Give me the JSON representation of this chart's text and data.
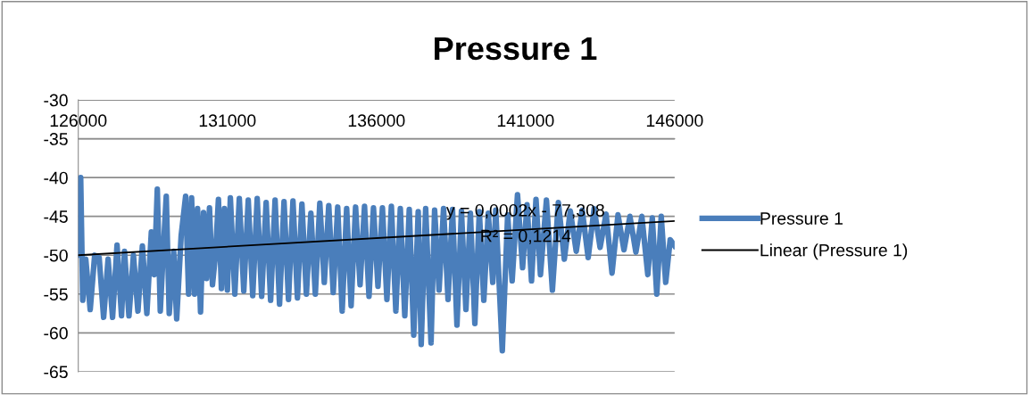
{
  "chart_data": {
    "type": "line",
    "title": "Pressure 1",
    "xlim": [
      126000,
      146000
    ],
    "xticks": [
      126000,
      131000,
      136000,
      141000,
      146000
    ],
    "ylim": [
      -65,
      -30
    ],
    "yticks": [
      -65,
      -60,
      -55,
      -50,
      -45,
      -40,
      -35,
      -30
    ],
    "grid": "y",
    "legend": "right",
    "marker": "none",
    "line_style": "solid",
    "series": [
      {
        "name": "Pressure 1",
        "color": "#4a7ebb",
        "x": [
          126000,
          126080,
          126150,
          126250,
          126400,
          126550,
          126700,
          126850,
          127000,
          127150,
          127300,
          127450,
          127550,
          127700,
          127850,
          128000,
          128150,
          128300,
          128450,
          128550,
          128650,
          128750,
          128850,
          128950,
          129050,
          129200,
          129300,
          129450,
          129600,
          129700,
          129800,
          129900,
          130000,
          130100,
          130200,
          130300,
          130400,
          130500,
          130600,
          130700,
          130800,
          130900,
          131000,
          131100,
          131250,
          131400,
          131550,
          131700,
          131850,
          132000,
          132150,
          132300,
          132450,
          132600,
          132750,
          132900,
          133050,
          133200,
          133350,
          133500,
          133650,
          133800,
          133950,
          134100,
          134250,
          134400,
          134550,
          134700,
          134850,
          135000,
          135150,
          135300,
          135450,
          135600,
          135750,
          135900,
          136050,
          136200,
          136350,
          136500,
          136650,
          136800,
          136950,
          137100,
          137250,
          137400,
          137500,
          137650,
          137830,
          137950,
          138100,
          138250,
          138400,
          138550,
          138700,
          138850,
          139000,
          139150,
          139300,
          139450,
          139600,
          139750,
          139900,
          140000,
          140220,
          140400,
          140550,
          140730,
          140900,
          141050,
          141200,
          141350,
          141500,
          141700,
          141900,
          142100,
          142300,
          142500,
          142700,
          142900,
          143100,
          143300,
          143500,
          143700,
          143900,
          144100,
          144300,
          144500,
          144700,
          144900,
          145100,
          145250,
          145400,
          145550,
          145700,
          145850,
          146000
        ],
        "values": [
          -50,
          -40,
          -55.8,
          -50.5,
          -57,
          -50,
          -50.3,
          -58,
          -50.5,
          -58,
          -48.7,
          -57.8,
          -49.5,
          -57.8,
          -50,
          -57.2,
          -48.8,
          -57.5,
          -47,
          -52.5,
          -41.5,
          -57.2,
          -49.5,
          -42.4,
          -57.5,
          -49.5,
          -58.2,
          -47.5,
          -42.4,
          -55,
          -42.6,
          -55,
          -44,
          -57.3,
          -44.5,
          -53,
          -43.9,
          -53.8,
          -50,
          -42.8,
          -54.3,
          -44,
          -54.5,
          -42.6,
          -55,
          -42.7,
          -54.6,
          -42.9,
          -55.2,
          -42.7,
          -55.3,
          -43.2,
          -55.8,
          -42.9,
          -56.3,
          -43.1,
          -55.7,
          -43,
          -55.5,
          -43.4,
          -55,
          -44.6,
          -55,
          -43.3,
          -53.5,
          -43.6,
          -54.8,
          -43.8,
          -57.2,
          -44,
          -56.5,
          -43.8,
          -53.8,
          -43.7,
          -55.3,
          -43.9,
          -54,
          -43.9,
          -55.7,
          -43.7,
          -57.2,
          -44,
          -57.8,
          -44.1,
          -60.3,
          -44.4,
          -61.5,
          -44,
          -61.3,
          -44.2,
          -54.5,
          -44,
          -55.7,
          -44.1,
          -59,
          -44.3,
          -57,
          -44.6,
          -58.8,
          -44.4,
          -55.8,
          -44.6,
          -53.5,
          -44.2,
          -62.3,
          -44.8,
          -53.3,
          -42.2,
          -51.6,
          -43.5,
          -53.3,
          -42.8,
          -52.5,
          -42.9,
          -54.5,
          -43.2,
          -50.5,
          -44.3,
          -49.5,
          -44.2,
          -50.3,
          -44,
          -49,
          -44.7,
          -52.3,
          -44.8,
          -49.3,
          -45,
          -49.6,
          -45,
          -52.5,
          -45.2,
          -55,
          -45,
          -53.5,
          -48,
          -48.8
        ]
      },
      {
        "name": "Linear (Pressure 1)",
        "color": "#000000",
        "x": [
          126000,
          146000
        ],
        "values": [
          -50.0,
          -45.6
        ]
      }
    ],
    "annotations": [
      {
        "text": "y = 0,0002x - 77,308",
        "x": 141000,
        "y": -44.4
      },
      {
        "text": "R² = 0,1214",
        "x": 141000,
        "y": -47.7
      }
    ]
  }
}
